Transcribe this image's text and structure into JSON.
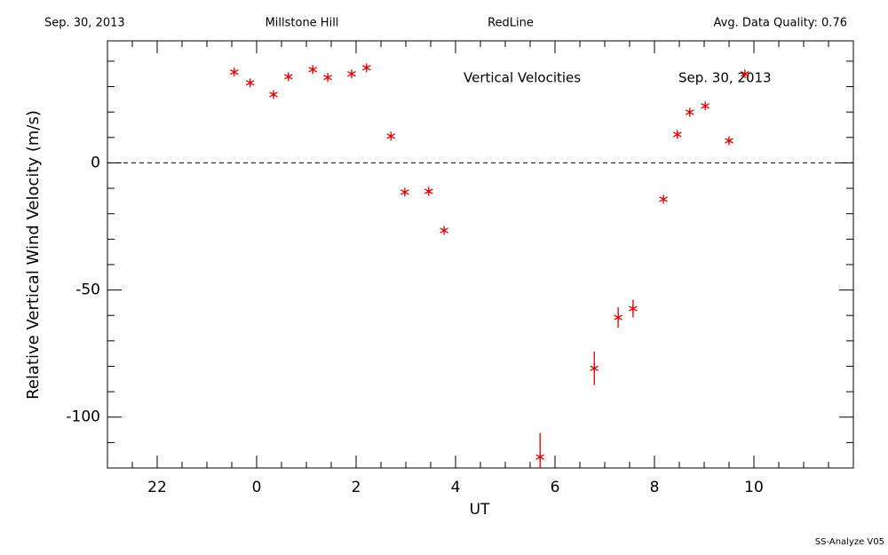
{
  "header": {
    "date": "Sep. 30, 2013",
    "site": "Millstone Hill",
    "instrument": "RedLine",
    "quality": "Avg. Data Quality: 0.76"
  },
  "footer": "SS-Analyze V05",
  "chart_data": {
    "type": "scatter",
    "annotations": [
      "Vertical Velocities",
      "Sep. 30, 2013"
    ],
    "x_label": "UT",
    "y_label": "Relative Vertical Wind Velocity (m/s)",
    "color": "#e00000",
    "x": [
      -0.45,
      -0.13,
      0.34,
      0.64,
      1.13,
      1.43,
      1.91,
      2.21,
      2.7,
      2.98,
      3.46,
      3.77,
      5.7,
      6.79,
      7.27,
      7.57,
      8.18,
      8.46,
      8.71,
      9.02,
      9.5,
      9.82
    ],
    "values": [
      35.7,
      31.5,
      26.9,
      33.9,
      36.7,
      33.6,
      35.0,
      37.4,
      10.5,
      -11.5,
      -11.2,
      -26.6,
      -115.7,
      -80.8,
      -60.8,
      -57.3,
      -14.3,
      11.2,
      19.9,
      22.4,
      8.7,
      35.0
    ],
    "errors": [
      1,
      1,
      1,
      1,
      1,
      1,
      1,
      1,
      1,
      1,
      1,
      1,
      9.5,
      6.6,
      4,
      3.5,
      1,
      1,
      1,
      1,
      1,
      1
    ],
    "xlim": [
      -3,
      12
    ],
    "ylim": [
      -120,
      48
    ],
    "xticks": [
      {
        "value": -2,
        "label": "22"
      },
      0,
      2,
      4,
      6,
      8,
      10
    ],
    "yticks": [
      -100,
      -50,
      0
    ]
  }
}
